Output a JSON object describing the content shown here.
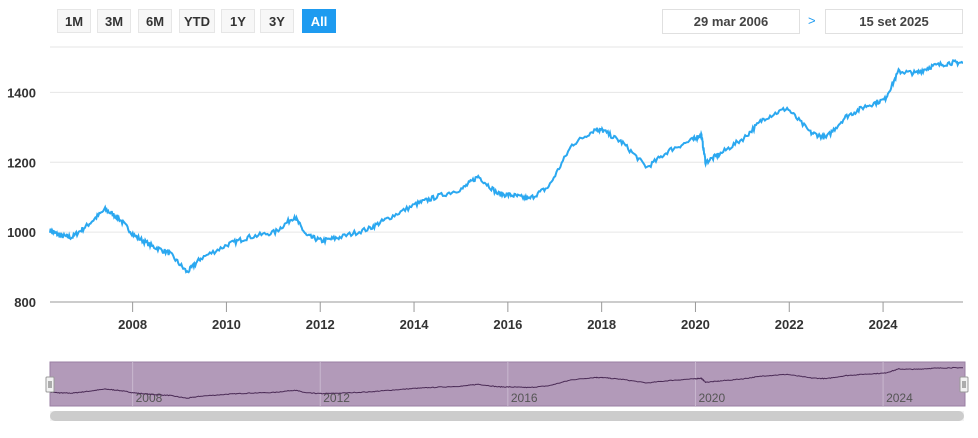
{
  "range_selector": {
    "buttons": [
      "1M",
      "3M",
      "6M",
      "YTD",
      "1Y",
      "3Y",
      "All"
    ],
    "active": "All"
  },
  "date_range": {
    "from": "29 mar 2006",
    "separator": ">",
    "to": "15 set 2025"
  },
  "navigator": {
    "labels": [
      "2008",
      "2012",
      "2016",
      "2020",
      "2024"
    ]
  },
  "colors": {
    "line": "#2ba8f0",
    "navigator_fill": "#b29ab9",
    "navigator_line": "#4a2a55",
    "active_button": "#1e9bf0"
  },
  "chart_data": {
    "type": "line",
    "title": "",
    "xlabel": "",
    "ylabel": "",
    "xlim": [
      "2006-03-29",
      "2025-09-15"
    ],
    "ylim": [
      800,
      1550
    ],
    "x_ticks": [
      "2008",
      "2010",
      "2012",
      "2014",
      "2016",
      "2018",
      "2020",
      "2022",
      "2024"
    ],
    "y_ticks": [
      800,
      1000,
      1200,
      1400
    ],
    "grid": "horizontal",
    "series": [
      {
        "x": [
          "2006-03-29",
          "2006-06-15",
          "2006-09-15",
          "2007-01-15",
          "2007-06-01",
          "2007-09-15",
          "2008-01-15",
          "2008-06-01",
          "2008-10-15",
          "2009-03-01",
          "2009-06-15",
          "2010-01-15",
          "2010-06-15",
          "2011-01-15",
          "2011-06-15",
          "2011-09-15",
          "2012-01-15",
          "2012-06-01",
          "2013-01-15",
          "2013-06-15",
          "2014-01-15",
          "2014-06-15",
          "2015-01-15",
          "2015-05-15",
          "2015-10-15",
          "2016-02-15",
          "2016-06-15",
          "2016-11-15",
          "2017-05-15",
          "2017-11-15",
          "2018-01-15",
          "2018-06-15",
          "2018-12-20",
          "2019-06-15",
          "2019-12-15",
          "2020-02-15",
          "2020-03-20",
          "2020-07-15",
          "2021-01-15",
          "2021-06-15",
          "2021-12-15",
          "2022-06-15",
          "2022-10-15",
          "2023-03-15",
          "2023-08-15",
          "2024-01-15",
          "2024-05-01",
          "2024-09-15",
          "2025-01-15",
          "2025-06-15",
          "2025-09-15"
        ],
        "y": [
          1005,
          990,
          985,
          1020,
          1065,
          1040,
          990,
          960,
          940,
          885,
          925,
          965,
          985,
          1000,
          1045,
          990,
          975,
          985,
          1010,
          1040,
          1080,
          1100,
          1125,
          1160,
          1110,
          1105,
          1095,
          1130,
          1250,
          1295,
          1290,
          1255,
          1185,
          1235,
          1265,
          1280,
          1200,
          1225,
          1270,
          1325,
          1355,
          1285,
          1270,
          1330,
          1360,
          1380,
          1460,
          1455,
          1475,
          1485,
          1485
        ]
      }
    ]
  }
}
